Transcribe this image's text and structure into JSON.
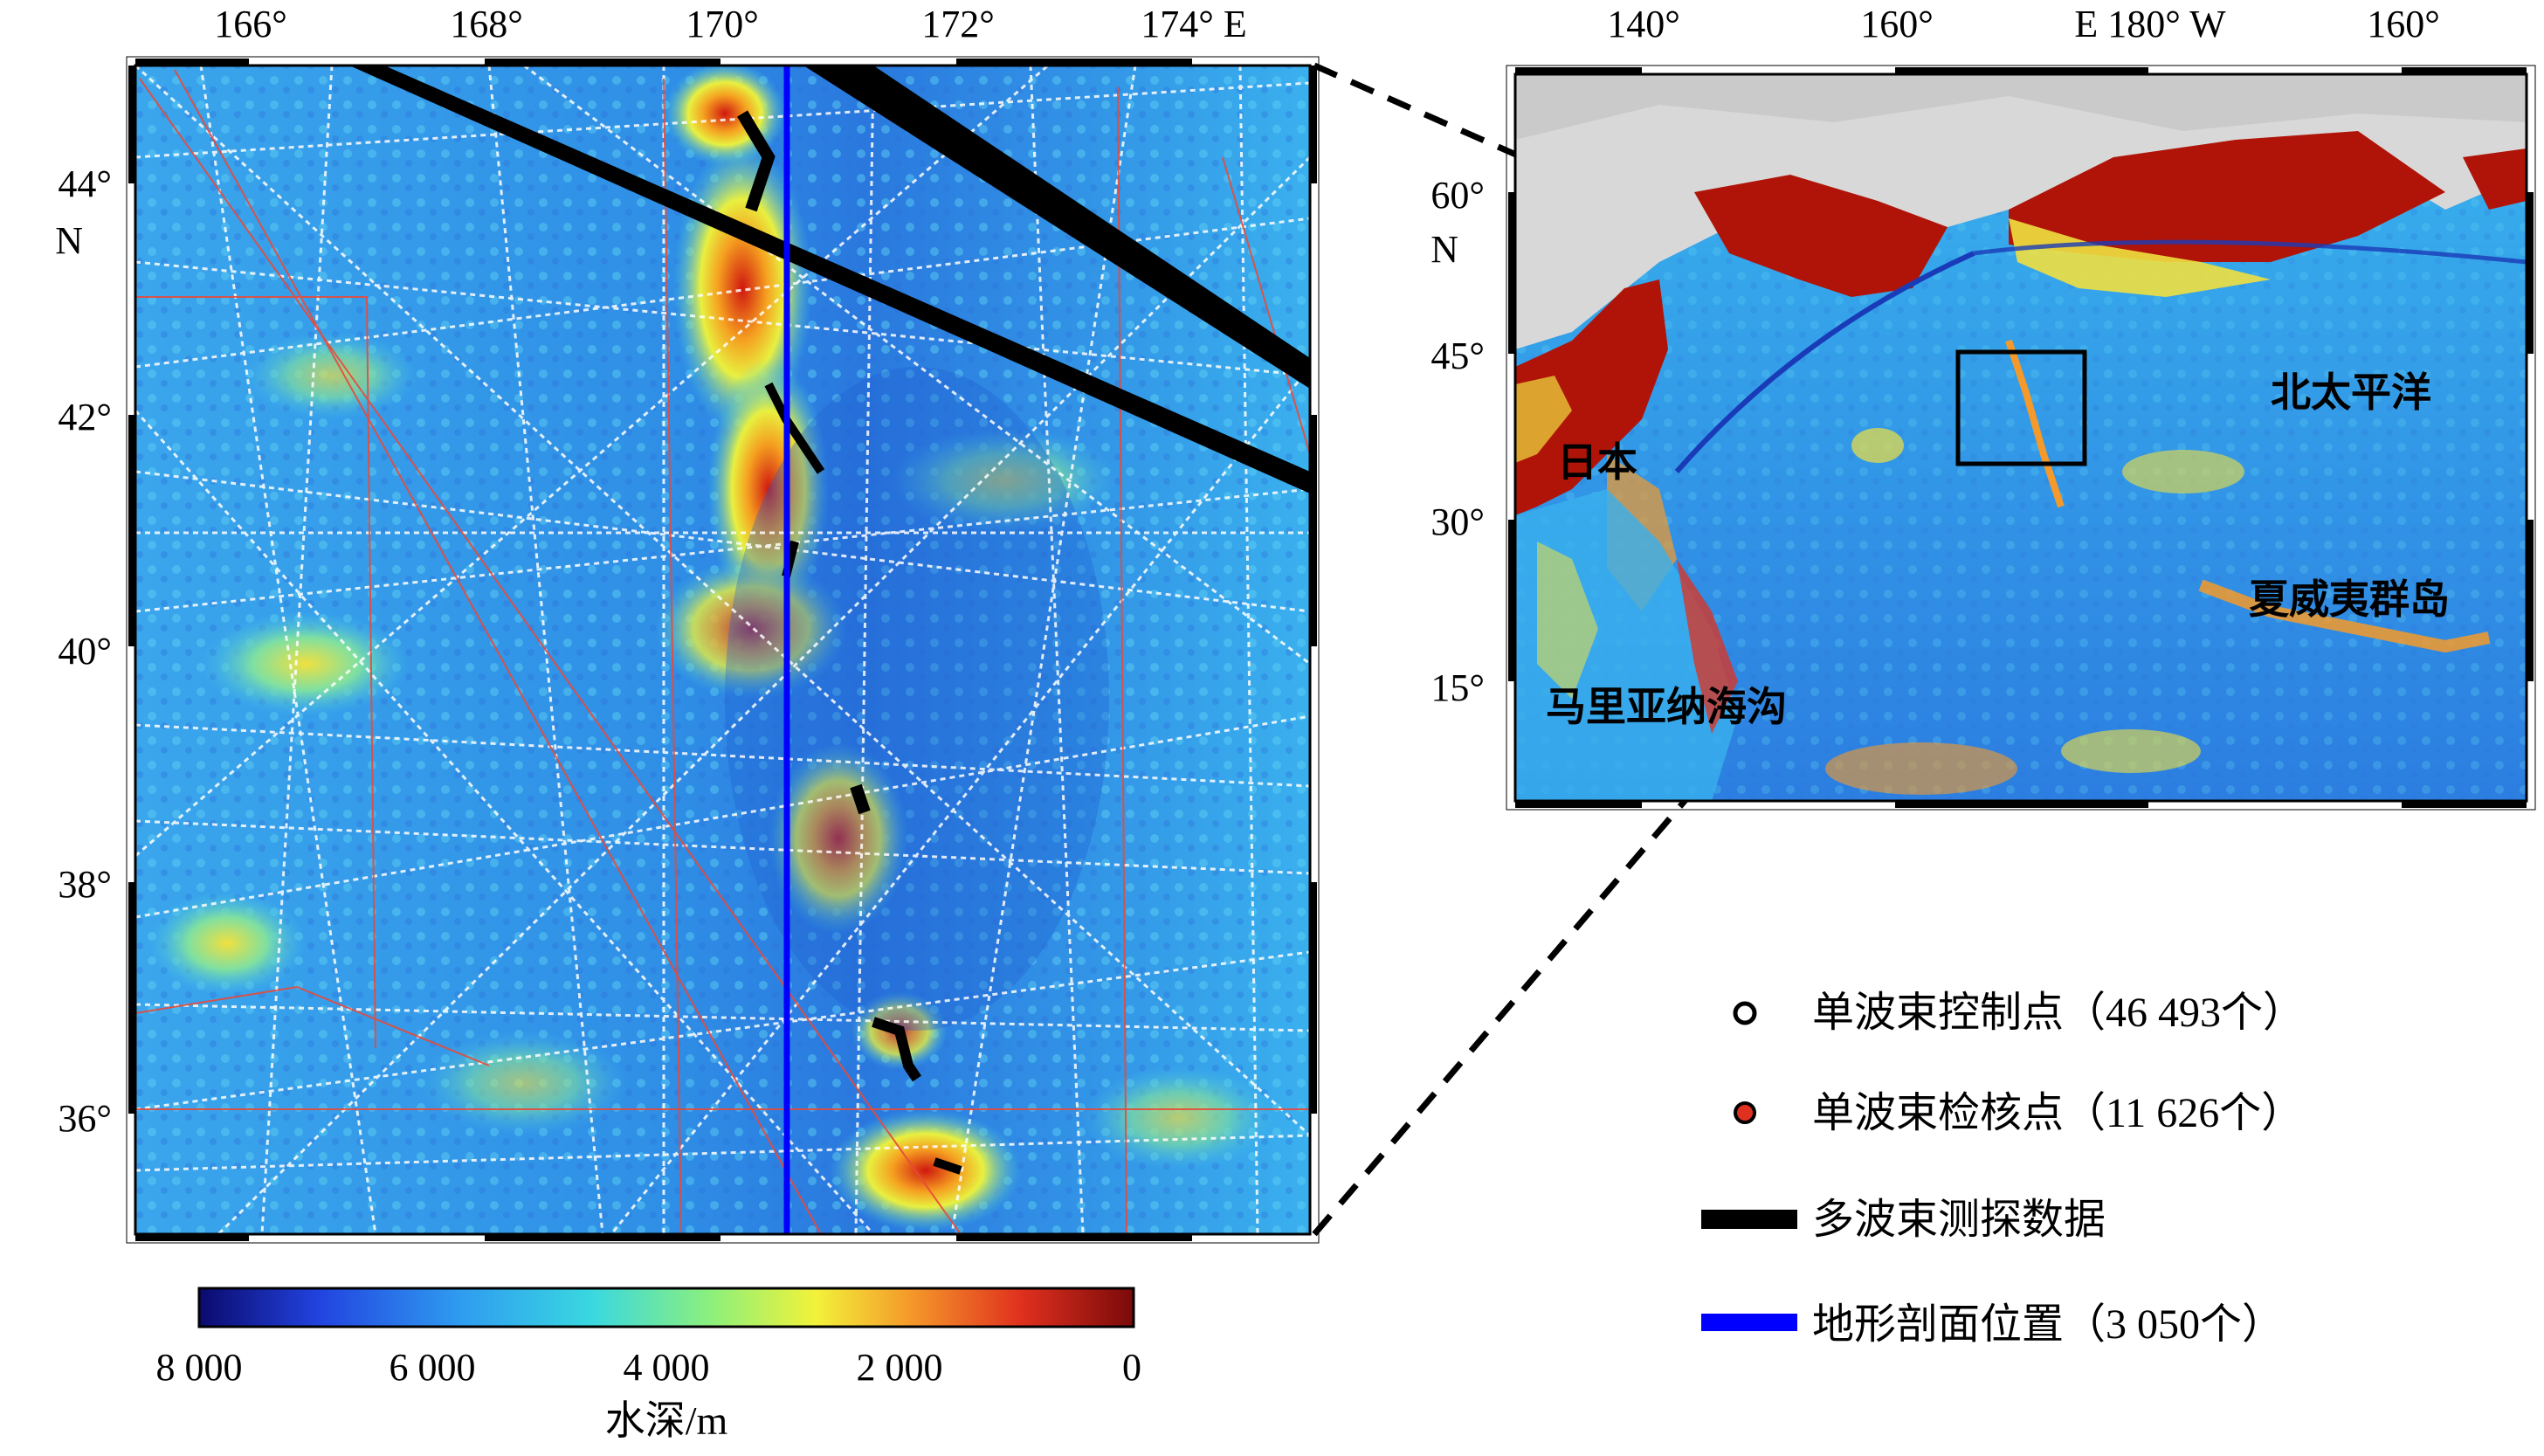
{
  "left_map": {
    "lon_ticks": [
      "166°",
      "168°",
      "170°",
      "172°",
      "174° E"
    ],
    "lat_ticks": [
      "44°",
      "42°",
      "40°",
      "38°",
      "36°"
    ],
    "lat_hemisphere": "N"
  },
  "right_map": {
    "lon_ticks": [
      "140°",
      "160°",
      "E 180° W",
      "160°"
    ],
    "lat_ticks": [
      "60°",
      "45°",
      "30°",
      "15°"
    ],
    "lat_hemisphere": "N",
    "labels": {
      "japan": "日本",
      "north_pacific": "北太平洋",
      "hawaii": "夏威夷群岛",
      "mariana": "马里亚纳海沟"
    }
  },
  "colorbar": {
    "ticks": [
      "8 000",
      "6 000",
      "4 000",
      "2 000",
      "0"
    ],
    "label": "水深/m",
    "stops": [
      "#0b0a6e",
      "#2244e0",
      "#2f9cf0",
      "#39d8e0",
      "#8ef07a",
      "#f2f23a",
      "#f59a2a",
      "#e0301e",
      "#7a0a0a"
    ]
  },
  "legend": [
    {
      "symbol": "open-circle",
      "text": "单波束控制点（46 493个）"
    },
    {
      "symbol": "red-circle",
      "text": "单波束检核点（11 626个）"
    },
    {
      "symbol": "black-bar",
      "text": "多波束测探数据"
    },
    {
      "symbol": "blue-bar",
      "text": "地形剖面位置（3 050个）"
    }
  ],
  "colors": {
    "ocean_deep": "#2a6fd8",
    "ocean_mid": "#3fa9ee",
    "land": "#b01408",
    "profile_line": "#0000ff",
    "multibeam": "#000000",
    "check_points": "#e03020"
  }
}
